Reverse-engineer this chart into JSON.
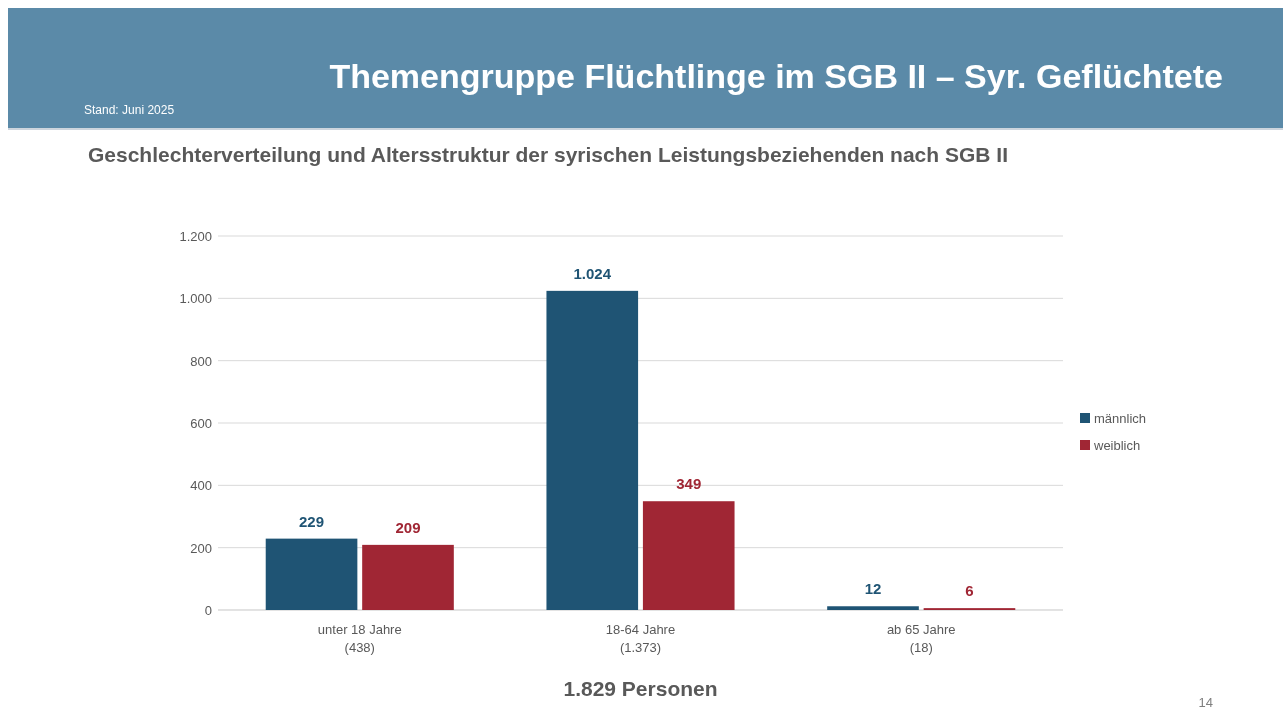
{
  "chart_data": {
    "type": "bar",
    "title": "Themengruppe Flüchtlinge im SGB II – Syr. Geflüchtete",
    "subtitle": "Geschlechterverteilung und Altersstruktur der syrischen Leistungsbeziehenden nach SGB II",
    "categories": [
      "unter 18 Jahre\n(438)",
      "18-64 Jahre\n(1.373)",
      "ab 65 Jahre\n(18)"
    ],
    "series": [
      {
        "name": "männlich",
        "color": "#1f5474",
        "values": [
          229,
          1024,
          12
        ],
        "value_labels": [
          "229",
          "1.024",
          "12"
        ]
      },
      {
        "name": "weiblich",
        "color": "#a02634",
        "values": [
          209,
          349,
          6
        ],
        "value_labels": [
          "209",
          "349",
          "6"
        ]
      }
    ],
    "ylim": [
      0,
      1200
    ],
    "yticks": [
      {
        "value": 0,
        "label": "0"
      },
      {
        "value": 200,
        "label": "200"
      },
      {
        "value": 400,
        "label": "400"
      },
      {
        "value": 600,
        "label": "600"
      },
      {
        "value": 800,
        "label": "800"
      },
      {
        "value": 1000,
        "label": "1.000"
      },
      {
        "value": 1200,
        "label": "1.200"
      }
    ],
    "grid": "y",
    "legend": "right",
    "annotations": [
      "Stand: Juni 2025",
      "1.829 Personen",
      "14"
    ]
  }
}
